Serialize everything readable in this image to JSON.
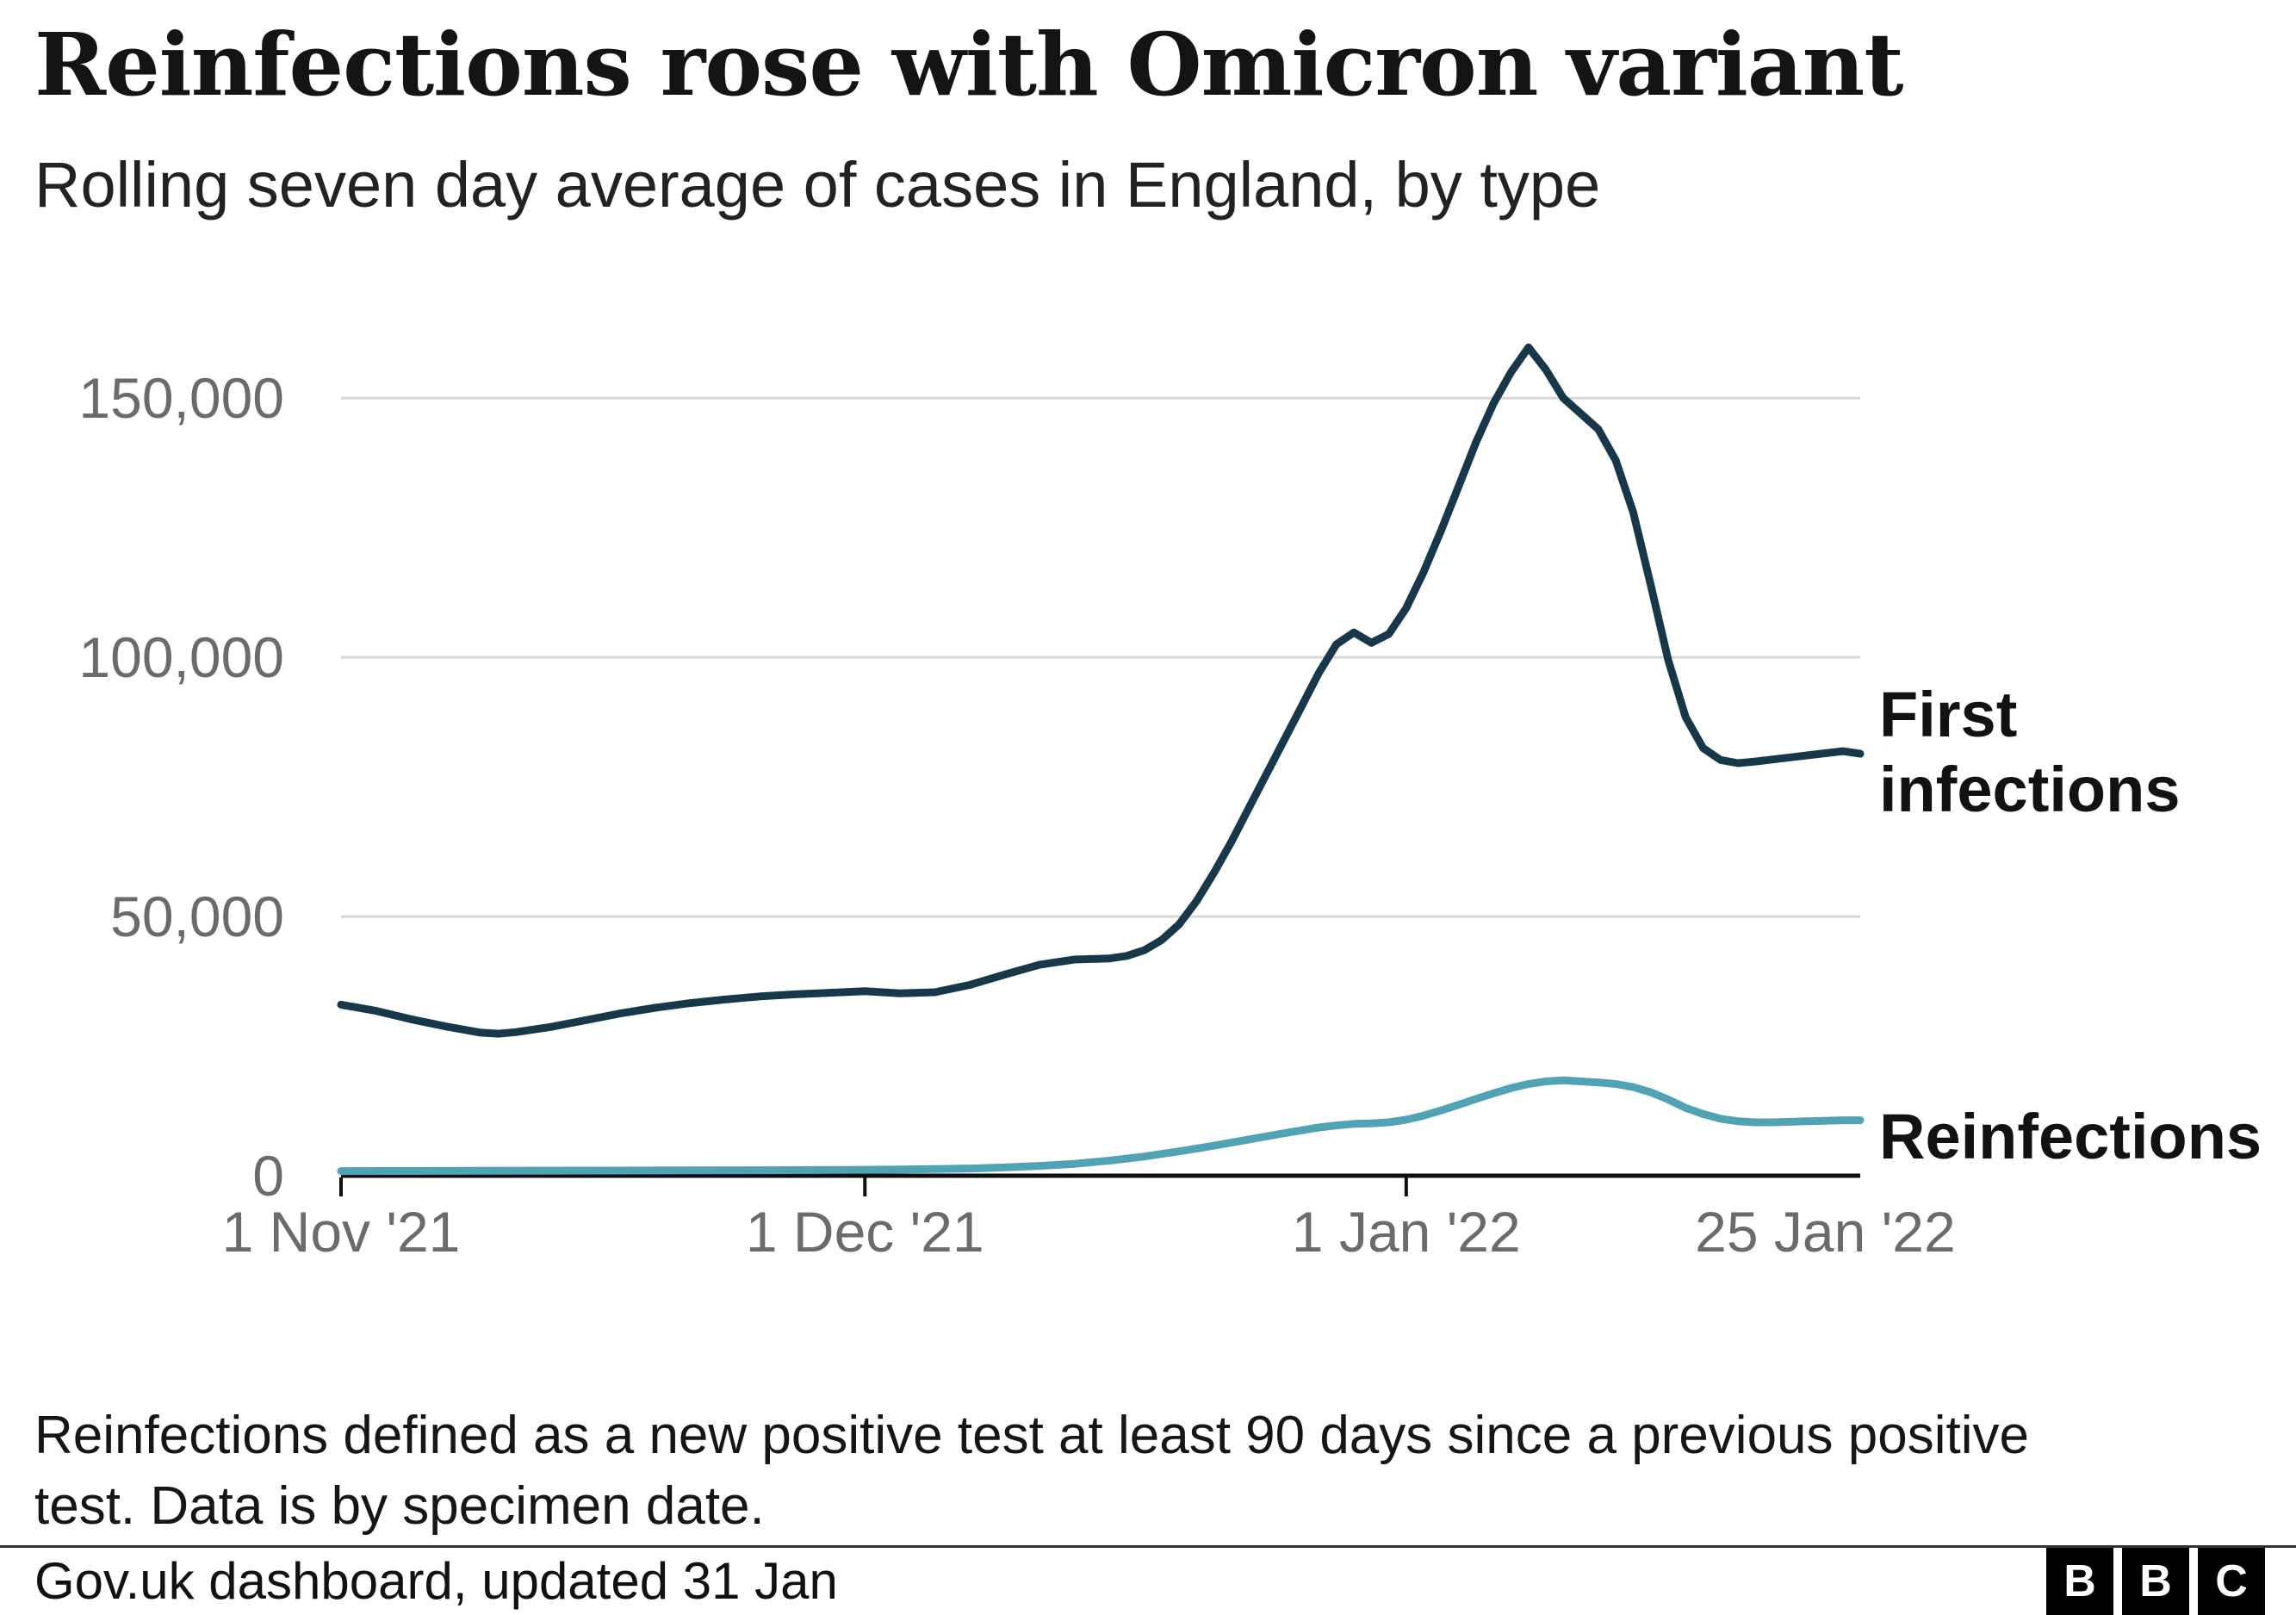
{
  "chart_data": {
    "type": "line",
    "title": "Reinfections rose with Omicron variant",
    "subtitle": "Rolling seven day average of cases in England, by type",
    "x_unit": "days since 1 Nov 2021",
    "xlim": [
      0,
      87
    ],
    "ylim": [
      0,
      165000
    ],
    "grid": "horizontal",
    "legend_position": "right-inline",
    "yticks": [
      {
        "value": 0,
        "label": "0"
      },
      {
        "value": 50000,
        "label": "50,000"
      },
      {
        "value": 100000,
        "label": "100,000"
      },
      {
        "value": 150000,
        "label": "150,000"
      }
    ],
    "xticks": [
      {
        "day": 0,
        "label": "1 Nov '21",
        "tick": true
      },
      {
        "day": 30,
        "label": "1 Dec '21",
        "tick": true
      },
      {
        "day": 61,
        "label": "1 Jan '22",
        "tick": true
      },
      {
        "day": 85,
        "label": "25 Jan '22",
        "tick": false
      }
    ],
    "series": [
      {
        "name": "First infections",
        "color": "#17384a",
        "points": [
          [
            0,
            33000
          ],
          [
            2,
            31800
          ],
          [
            4,
            30200
          ],
          [
            6,
            28800
          ],
          [
            8,
            27600
          ],
          [
            9,
            27400
          ],
          [
            10,
            27700
          ],
          [
            12,
            28700
          ],
          [
            14,
            30000
          ],
          [
            16,
            31300
          ],
          [
            18,
            32400
          ],
          [
            20,
            33300
          ],
          [
            22,
            34000
          ],
          [
            24,
            34600
          ],
          [
            26,
            35000
          ],
          [
            28,
            35300
          ],
          [
            30,
            35600
          ],
          [
            31,
            35400
          ],
          [
            32,
            35200
          ],
          [
            34,
            35400
          ],
          [
            36,
            36800
          ],
          [
            38,
            38800
          ],
          [
            40,
            40700
          ],
          [
            42,
            41700
          ],
          [
            44,
            41900
          ],
          [
            45,
            42400
          ],
          [
            46,
            43500
          ],
          [
            47,
            45500
          ],
          [
            48,
            48500
          ],
          [
            49,
            53000
          ],
          [
            50,
            58500
          ],
          [
            51,
            64500
          ],
          [
            52,
            71000
          ],
          [
            53,
            77500
          ],
          [
            54,
            84000
          ],
          [
            55,
            90500
          ],
          [
            56,
            97000
          ],
          [
            57,
            102500
          ],
          [
            58,
            104800
          ],
          [
            59,
            102800
          ],
          [
            60,
            104500
          ],
          [
            61,
            109500
          ],
          [
            62,
            116500
          ],
          [
            63,
            124500
          ],
          [
            64,
            133000
          ],
          [
            65,
            141500
          ],
          [
            66,
            149000
          ],
          [
            67,
            155000
          ],
          [
            68,
            159800
          ],
          [
            69,
            155500
          ],
          [
            70,
            150000
          ],
          [
            71,
            147000
          ],
          [
            72,
            144000
          ],
          [
            73,
            138000
          ],
          [
            74,
            128000
          ],
          [
            75,
            114000
          ],
          [
            76,
            99500
          ],
          [
            77,
            88500
          ],
          [
            78,
            82500
          ],
          [
            79,
            80200
          ],
          [
            80,
            79600
          ],
          [
            81,
            79900
          ],
          [
            82,
            80300
          ],
          [
            83,
            80700
          ],
          [
            84,
            81100
          ],
          [
            85,
            81500
          ],
          [
            86,
            81900
          ],
          [
            87,
            81400
          ]
        ]
      },
      {
        "name": "Reinfections",
        "color": "#4fa3b5",
        "points": [
          [
            0,
            900
          ],
          [
            4,
            920
          ],
          [
            8,
            950
          ],
          [
            12,
            980
          ],
          [
            16,
            1000
          ],
          [
            20,
            1030
          ],
          [
            24,
            1070
          ],
          [
            28,
            1120
          ],
          [
            30,
            1150
          ],
          [
            32,
            1200
          ],
          [
            34,
            1280
          ],
          [
            36,
            1400
          ],
          [
            38,
            1600
          ],
          [
            40,
            1900
          ],
          [
            42,
            2300
          ],
          [
            44,
            2900
          ],
          [
            46,
            3700
          ],
          [
            48,
            4700
          ],
          [
            50,
            5800
          ],
          [
            52,
            7000
          ],
          [
            54,
            8200
          ],
          [
            56,
            9300
          ],
          [
            57,
            9700
          ],
          [
            58,
            10000
          ],
          [
            59,
            10100
          ],
          [
            60,
            10300
          ],
          [
            61,
            10800
          ],
          [
            62,
            11600
          ],
          [
            63,
            12600
          ],
          [
            64,
            13700
          ],
          [
            65,
            14800
          ],
          [
            66,
            15900
          ],
          [
            67,
            16900
          ],
          [
            68,
            17700
          ],
          [
            69,
            18200
          ],
          [
            70,
            18400
          ],
          [
            71,
            18200
          ],
          [
            72,
            18000
          ],
          [
            73,
            17700
          ],
          [
            74,
            17100
          ],
          [
            75,
            16100
          ],
          [
            76,
            14700
          ],
          [
            77,
            13100
          ],
          [
            78,
            11900
          ],
          [
            79,
            11000
          ],
          [
            80,
            10500
          ],
          [
            81,
            10300
          ],
          [
            82,
            10300
          ],
          [
            83,
            10400
          ],
          [
            84,
            10500
          ],
          [
            85,
            10600
          ],
          [
            86,
            10700
          ],
          [
            87,
            10700
          ]
        ]
      }
    ]
  },
  "footnote": "Reinfections defined as a new positive test at least 90 days since a previous positive test. Data is by specimen date.",
  "source": {
    "text": "Gov.uk dashboard, updated 31 Jan",
    "logo_letters": [
      "B",
      "B",
      "C"
    ]
  }
}
